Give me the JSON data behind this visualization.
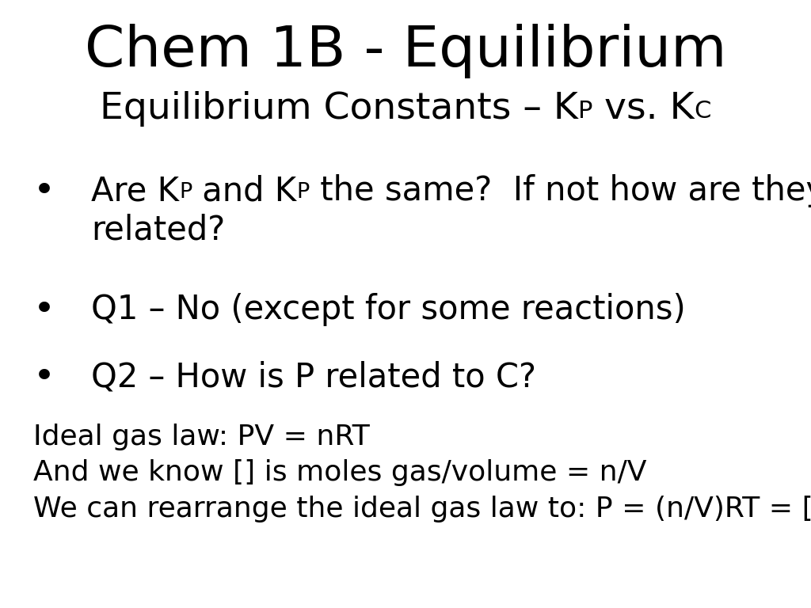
{
  "background_color": "#ffffff",
  "title_line1": "Chem 1B - Equilibrium",
  "title_fontsize": 52,
  "subtitle_fontsize": 34,
  "body_fontsize": 30,
  "small_fontsize": 26,
  "subtitle_parts": [
    {
      "text": "Equilibrium Constants – K",
      "style": "normal"
    },
    {
      "text": "P",
      "style": "sub"
    },
    {
      "text": " vs. K",
      "style": "normal"
    },
    {
      "text": "C",
      "style": "sub"
    }
  ],
  "bullet1_line1_parts": [
    {
      "text": "Are K",
      "style": "normal"
    },
    {
      "text": "P",
      "style": "sub"
    },
    {
      "text": " and K",
      "style": "normal"
    },
    {
      "text": "P",
      "style": "sub"
    },
    {
      "text": " the same?  If not how are they",
      "style": "normal"
    }
  ],
  "bullet1_line2": "related?",
  "bullet2": "Q1 – No (except for some reactions)",
  "bullet3": "Q2 – How is P related to C?",
  "plain_lines": [
    "Ideal gas law: PV = nRT",
    "And we know [] is moles gas/volume = n/V",
    "We can rearrange the ideal gas law to: P = (n/V)RT = []RT"
  ],
  "font_family": "DejaVu Sans"
}
